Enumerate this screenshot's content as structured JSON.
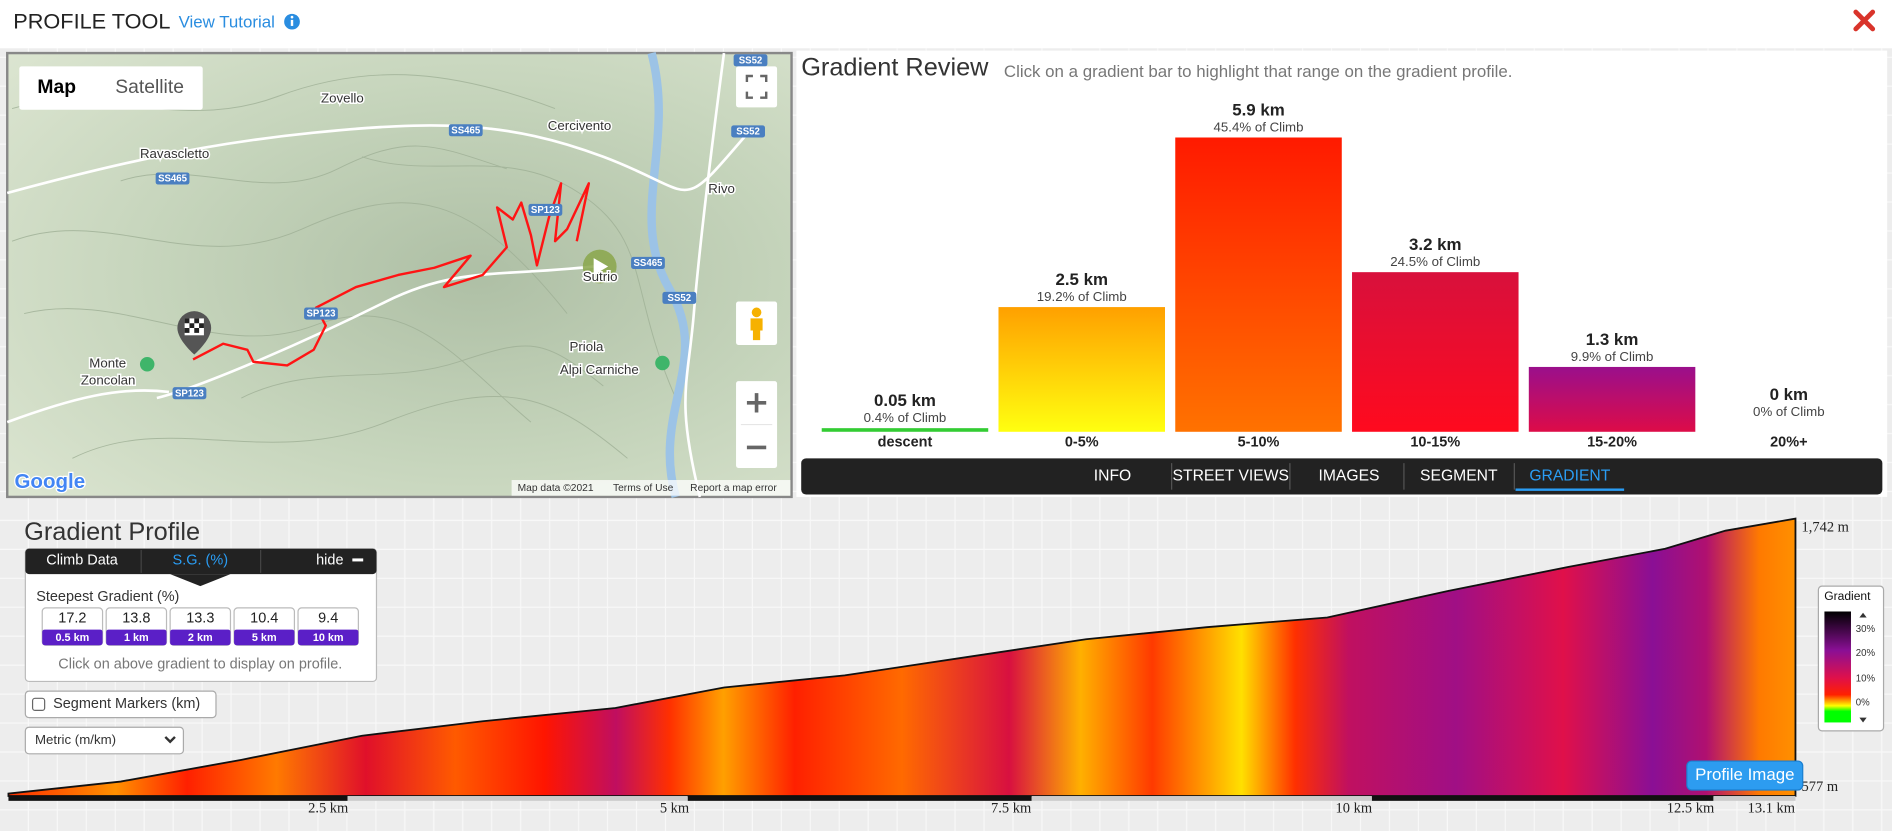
{
  "header": {
    "title": "PROFILE TOOL",
    "tutorial": "View Tutorial"
  },
  "map": {
    "tabs": [
      "Map",
      "Satellite"
    ],
    "places": [
      "Zovello",
      "Cercivento",
      "Ravascletto",
      "Rivo",
      "Priola",
      "Alpi Carniche",
      "Monte",
      "Zoncolan",
      "Sutrio"
    ],
    "roads": [
      "SS52",
      "SS465",
      "SS52",
      "SS465",
      "SP123",
      "SS465",
      "SS52",
      "SP123",
      "SP123"
    ],
    "logo": "Google",
    "attribution": [
      "Map data ©2021",
      "Terms of Use",
      "Report a map error"
    ]
  },
  "gradient_review": {
    "title": "Gradient Review",
    "subtitle": "Click on a gradient bar to highlight that range on the gradient profile.",
    "bars": [
      {
        "distance": "0.05 km",
        "share": "0.4% of Climb",
        "range": "descent",
        "color": [
          "#33cc33",
          "#33cc33"
        ]
      },
      {
        "distance": "2.5 km",
        "share": "19.2% of Climb",
        "range": "0-5%",
        "color": [
          "#ffa000",
          "#ffff10"
        ]
      },
      {
        "distance": "5.9 km",
        "share": "45.4% of Climb",
        "range": "5-10%",
        "color": [
          "#ff1a00",
          "#ff7200"
        ]
      },
      {
        "distance": "3.2 km",
        "share": "24.5% of Climb",
        "range": "10-15%",
        "color": [
          "#d8103c",
          "#ff0a1e"
        ]
      },
      {
        "distance": "1.3 km",
        "share": "9.9% of Climb",
        "range": "15-20%",
        "color": [
          "#9a0f8c",
          "#dd0c48"
        ]
      },
      {
        "distance": "0 km",
        "share": "0% of Climb",
        "range": "20%+",
        "color": [
          "#000000",
          "#000000"
        ]
      }
    ]
  },
  "tabs": [
    "INFO",
    "STREET VIEWS",
    "IMAGES",
    "SEGMENT",
    "GRADIENT"
  ],
  "gradient_profile": {
    "title": "Gradient Profile",
    "panel_tabs": [
      "Climb Data",
      "S.G. (%)"
    ],
    "hide": "hide",
    "steepest_title": "Steepest Gradient (%)",
    "steepest": [
      {
        "value": 17.2,
        "window": "0.5 km"
      },
      {
        "value": 13.8,
        "window": "1 km"
      },
      {
        "value": 13.3,
        "window": "2 km"
      },
      {
        "value": 10.4,
        "window": "5 km"
      },
      {
        "value": 9.4,
        "window": "10 km"
      }
    ],
    "hint": "Click on above gradient to display on profile.",
    "segment_markers": "Segment Markers (km)",
    "units": "Metric (m/km)",
    "elevation_labels": [
      "1,742 m",
      "577 m"
    ],
    "distance_labels": [
      "2.5 km",
      "5 km",
      "7.5 km",
      "10 km",
      "12.5 km",
      "13.1 km"
    ],
    "legend": {
      "title": "Gradient",
      "labels": [
        "30%",
        "20%",
        "10%",
        "0%"
      ]
    },
    "button": "Profile Image"
  }
}
